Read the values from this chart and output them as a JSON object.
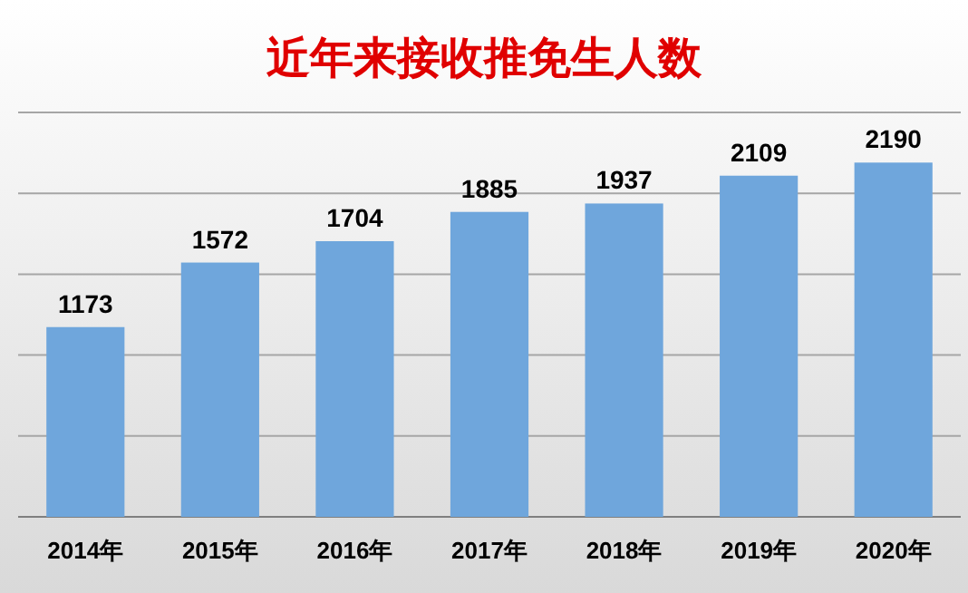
{
  "chart_data": {
    "type": "bar",
    "title": "近年来接收推免生人数",
    "categories": [
      "2014年",
      "2015年",
      "2016年",
      "2017年",
      "2018年",
      "2019年",
      "2020年"
    ],
    "values": [
      1173,
      1572,
      1704,
      1885,
      1937,
      2109,
      2190
    ],
    "color": "#6fa6dc",
    "ylim": [
      0,
      2500
    ],
    "yticks": [
      {
        "value": 0,
        "label": null
      },
      {
        "value": 500,
        "label": null
      },
      {
        "value": 1000,
        "label": null
      },
      {
        "value": 1500,
        "label": null
      },
      {
        "value": 2000,
        "label": null
      },
      {
        "value": 2500,
        "label": null
      }
    ],
    "grid": "y",
    "data_labels": true,
    "tick_labels": "x"
  }
}
